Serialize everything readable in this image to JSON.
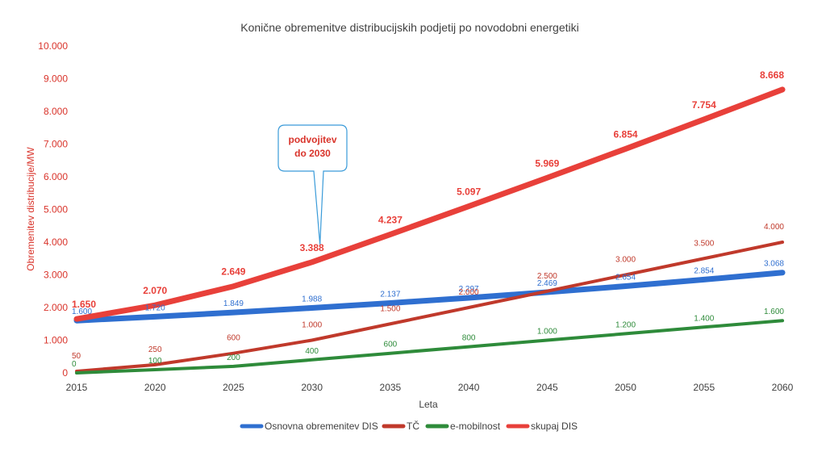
{
  "chart_data": {
    "type": "line",
    "title": "Konične obremenitve distribucijskih podjetij po novodobni energetiki",
    "xlabel": "Leta",
    "ylabel": "Obremenitev distribucije/MW",
    "categories": [
      "2015",
      "2020",
      "2025",
      "2030",
      "2035",
      "2040",
      "2045",
      "2050",
      "2055",
      "2060"
    ],
    "ylim": [
      0,
      10000
    ],
    "ytick_values": [
      0,
      1000,
      2000,
      3000,
      4000,
      5000,
      6000,
      7000,
      8000,
      9000,
      10000
    ],
    "ytick_labels": [
      "0",
      "1.000",
      "2.000",
      "3.000",
      "4.000",
      "5.000",
      "6.000",
      "7.000",
      "8.000",
      "9.000",
      "10.000"
    ],
    "series": [
      {
        "name": "Osnovna obremenitev DIS",
        "color": "#2f6fd0",
        "values": [
          1600,
          1720,
          1849,
          1988,
          2137,
          2297,
          2469,
          2654,
          2854,
          3068
        ],
        "labels": [
          "1.600",
          "1.720",
          "1.849",
          "1.988",
          "2.137",
          "2.297",
          "2.469",
          "2.654",
          "2.854",
          "3.068"
        ]
      },
      {
        "name": "TČ",
        "color": "#c0392b",
        "values": [
          50,
          250,
          600,
          1000,
          1500,
          2000,
          2500,
          3000,
          3500,
          4000
        ],
        "labels": [
          "50",
          "250",
          "600",
          "1.000",
          "1.500",
          "2.000",
          "2.500",
          "3.000",
          "3.500",
          "4.000"
        ]
      },
      {
        "name": "e-mobilnost",
        "color": "#2e8b3a",
        "values": [
          0,
          100,
          200,
          400,
          600,
          800,
          1000,
          1200,
          1400,
          1600
        ],
        "labels": [
          "0",
          "100",
          "200",
          "400",
          "600",
          "800",
          "1.000",
          "1.200",
          "1.400",
          "1.600"
        ]
      },
      {
        "name": "skupaj DIS",
        "color": "#e8403a",
        "values": [
          1650,
          2070,
          2649,
          3388,
          4237,
          5097,
          5969,
          6854,
          7754,
          8668
        ],
        "labels": [
          "1.650",
          "2.070",
          "2.649",
          "3.388",
          "4.237",
          "5.097",
          "5.969",
          "6.854",
          "7.754",
          "8.668"
        ]
      }
    ],
    "annotation": {
      "lines": [
        "podvojitev",
        "do 2030"
      ],
      "x": "2030",
      "y": 3388
    },
    "legend_position": "bottom"
  }
}
